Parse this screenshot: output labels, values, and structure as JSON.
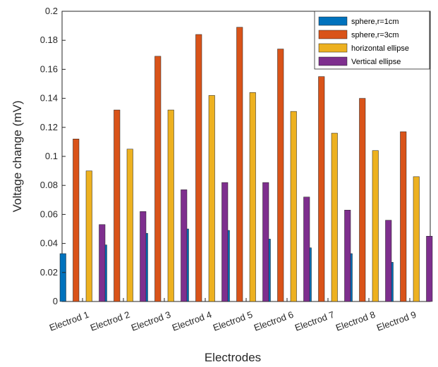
{
  "chart_data": {
    "type": "bar",
    "xlabel": "Electrodes",
    "ylabel": "Voltage change  (mV)",
    "ylim": [
      0,
      0.2
    ],
    "yticks": [
      "0",
      "0.02",
      "0.04",
      "0.06",
      "0.08",
      "0.1",
      "0.12",
      "0.14",
      "0.16",
      "0.18",
      "0.2"
    ],
    "categories": [
      "Electrod 1",
      "Electrod 2",
      "Electrod 3",
      "Electrod 4",
      "Electrod 5",
      "Electrod 6",
      "Electrod 7",
      "Electrod 8",
      "Electrod 9"
    ],
    "legend_position": "top-right",
    "series": [
      {
        "name": "sphere,r=1cm",
        "color": "#0072BD",
        "values": [
          0.033,
          0.039,
          0.047,
          0.05,
          0.049,
          0.043,
          0.037,
          0.033,
          0.027
        ]
      },
      {
        "name": "sphere,r=3cm",
        "color": "#D95319",
        "values": [
          0.112,
          0.132,
          0.169,
          0.184,
          0.189,
          0.174,
          0.155,
          0.14,
          0.117
        ]
      },
      {
        "name": "horizontal ellipse",
        "color": "#EDB120",
        "values": [
          0.09,
          0.105,
          0.132,
          0.142,
          0.144,
          0.131,
          0.116,
          0.104,
          0.086
        ]
      },
      {
        "name": "Vertical ellipse",
        "color": "#7E2F8E",
        "values": [
          0.053,
          0.062,
          0.077,
          0.082,
          0.082,
          0.072,
          0.063,
          0.056,
          0.045
        ]
      }
    ]
  }
}
